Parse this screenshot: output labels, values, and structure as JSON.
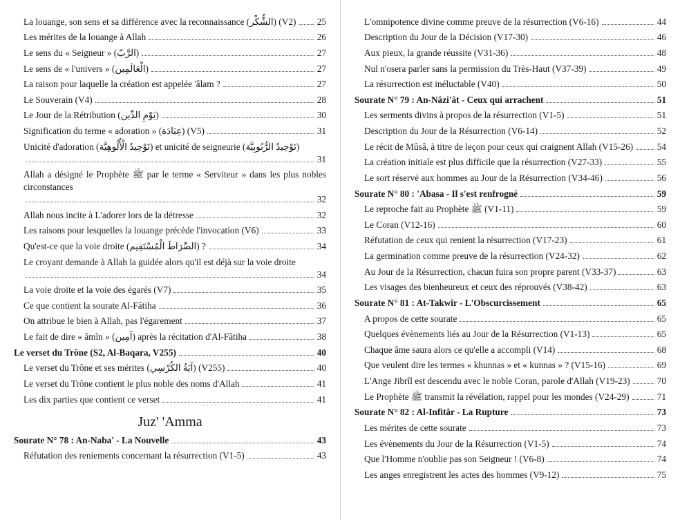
{
  "section_title": "Juz' 'Amma",
  "left": [
    {
      "t": "La louange, son sens et sa différence avec la reconnaissance (الشُّكْر) (V2)",
      "p": "25",
      "b": false,
      "i": 1
    },
    {
      "t": "Les mérites de la louange à Allah",
      "p": "26",
      "b": false,
      "i": 1
    },
    {
      "t": "Le sens du « Seigneur » (الرَّبّ)",
      "p": "27",
      "b": false,
      "i": 1
    },
    {
      "t": "Le sens de « l'univers » (الْعَالَمِين)",
      "p": "27",
      "b": false,
      "i": 1
    },
    {
      "t": "La raison pour laquelle la création est appelée 'âlam ?",
      "p": "27",
      "b": false,
      "i": 1
    },
    {
      "t": "Le Souverain (V4)",
      "p": "28",
      "b": false,
      "i": 1
    },
    {
      "t": "Le Jour de la Rétribution (يَوْمِ الدِّين)",
      "p": "30",
      "b": false,
      "i": 1
    },
    {
      "t": "Signification du terme « adoration » (عِبَادَة) (V5)",
      "p": "31",
      "b": false,
      "i": 1
    },
    {
      "t": "Unicité d'adoration (تَوْحِيدُ الْأُلُوهِيَّة) et unicité de seigneurie (تَوْحِيدُ الرُّبُوبِيَّة)",
      "p": "31",
      "b": false,
      "i": 1,
      "wrap": true
    },
    {
      "t": "Allah a désigné le Prophète ﷺ par le terme « Serviteur » dans les plus nobles circonstances",
      "p": "32",
      "b": false,
      "i": 1,
      "wrap": true
    },
    {
      "t": "Allah nous incite à L'adorer lors de la détresse",
      "p": "32",
      "b": false,
      "i": 1
    },
    {
      "t": "Les raisons pour lesquelles la louange précède l'invocation (V6)",
      "p": "33",
      "b": false,
      "i": 1
    },
    {
      "t": "Qu'est-ce que la voie droite (الصِّرَاطَ الْمُسْتَقِيم) ?",
      "p": "34",
      "b": false,
      "i": 1
    },
    {
      "t": "Le croyant demande à Allah la guidée alors qu'il est déjà sur la voie droite",
      "p": "34",
      "b": false,
      "i": 1,
      "wrap": true
    },
    {
      "t": "La voie droite et la voie des égarés (V7)",
      "p": "35",
      "b": false,
      "i": 1
    },
    {
      "t": "Ce que contient la sourate Al-Fâtiha",
      "p": "36",
      "b": false,
      "i": 1
    },
    {
      "t": "On attribue le bien à Allah, pas l'égarement",
      "p": "37",
      "b": false,
      "i": 1
    },
    {
      "t": "Le fait de dire « âmîn » (آمِين) après la récitation d'Al-Fâtiha",
      "p": "38",
      "b": false,
      "i": 1
    },
    {
      "t": "Le verset du Trône (S2, Al-Baqara, V255)",
      "p": "40",
      "b": true,
      "i": 0
    },
    {
      "t": "Le verset du Trône et ses mérites (آيَةُ الكُرْسِي) (V255)",
      "p": "40",
      "b": false,
      "i": 1
    },
    {
      "t": "Le verset du Trône contient le plus noble des noms d'Allah",
      "p": "41",
      "b": false,
      "i": 1
    },
    {
      "t": "Les dix parties que contient ce verset",
      "p": "41",
      "b": false,
      "i": 1
    }
  ],
  "left_after_title": [
    {
      "t": "Sourate N° 78 : An-Naba' - La Nouvelle",
      "p": "43",
      "b": true,
      "i": 0
    },
    {
      "t": "Réfutation des reniements concernant la résurrection (V1-5)",
      "p": "43",
      "b": false,
      "i": 1
    }
  ],
  "right": [
    {
      "t": "L'omnipotence divine comme preuve de la résurrection (V6-16)",
      "p": "44",
      "b": false,
      "i": 1
    },
    {
      "t": "Description du Jour de la Décision (V17-30)",
      "p": "46",
      "b": false,
      "i": 1
    },
    {
      "t": "Aux pieux, la grande réussite (V31-36)",
      "p": "48",
      "b": false,
      "i": 1
    },
    {
      "t": "Nul n'osera parler sans la permission du Très-Haut (V37-39)",
      "p": "49",
      "b": false,
      "i": 1
    },
    {
      "t": "La résurrection est inéluctable (V40)",
      "p": "50",
      "b": false,
      "i": 1
    },
    {
      "t": "Sourate N° 79 : An-Nâzi'ât - Ceux qui arrachent",
      "p": "51",
      "b": true,
      "i": 0
    },
    {
      "t": "Les serments divins à propos de la résurrection (V1-5)",
      "p": "51",
      "b": false,
      "i": 1
    },
    {
      "t": "Description du Jour de la Résurrection (V6-14)",
      "p": "52",
      "b": false,
      "i": 1
    },
    {
      "t": "Le récit de Mûsâ, à titre de leçon pour ceux qui craignent Allah (V15-26)",
      "p": "54",
      "b": false,
      "i": 1
    },
    {
      "t": "La création initiale est plus difficile que la résurrection (V27-33)",
      "p": "55",
      "b": false,
      "i": 1
    },
    {
      "t": "Le sort réservé aux hommes au Jour de la Résurrection (V34-46)",
      "p": "56",
      "b": false,
      "i": 1
    },
    {
      "t": "Sourate N° 80 : 'Abasa - Il s'est renfrogné",
      "p": "59",
      "b": true,
      "i": 0
    },
    {
      "t": "Le reproche fait au Prophète ﷺ (V1-11)",
      "p": "59",
      "b": false,
      "i": 1
    },
    {
      "t": "Le Coran (V12-16)",
      "p": "60",
      "b": false,
      "i": 1
    },
    {
      "t": "Réfutation de ceux qui renient la résurrection (V17-23)",
      "p": "61",
      "b": false,
      "i": 1
    },
    {
      "t": "La germination comme preuve de la résurrection (V24-32)",
      "p": "62",
      "b": false,
      "i": 1
    },
    {
      "t": "Au Jour de la Résurrection, chacun fuira son propre parent (V33-37)",
      "p": "63",
      "b": false,
      "i": 1
    },
    {
      "t": "Les visages des bienheureux et ceux des réprouvés (V38-42)",
      "p": "63",
      "b": false,
      "i": 1
    },
    {
      "t": "Sourate N° 81 : At-Takwîr - L'Obscurcissement",
      "p": "65",
      "b": true,
      "i": 0
    },
    {
      "t": "A propos de cette sourate",
      "p": "65",
      "b": false,
      "i": 1
    },
    {
      "t": "Quelques évènements liés au Jour de la Résurrection (V1-13)",
      "p": "65",
      "b": false,
      "i": 1
    },
    {
      "t": "Chaque âme saura alors ce qu'elle a accompli (V14)",
      "p": "68",
      "b": false,
      "i": 1
    },
    {
      "t": "Que veulent dire les termes « khunnas » et « kunnas » ?   (V15-16)",
      "p": "69",
      "b": false,
      "i": 1
    },
    {
      "t": "L'Ange Jibrîl est descendu avec le noble Coran, parole d'Allah (V19-23)",
      "p": "70",
      "b": false,
      "i": 1
    },
    {
      "t": "Le Prophète ﷺ transmit la révélation, rappel pour les mondes (V24-29)",
      "p": "71",
      "b": false,
      "i": 1
    },
    {
      "t": "Sourate N° 82 : Al-Infitâr - La Rupture",
      "p": "73",
      "b": true,
      "i": 0
    },
    {
      "t": "Les mérites de cette sourate",
      "p": "73",
      "b": false,
      "i": 1
    },
    {
      "t": "Les évènements du Jour de la Résurrection (V1-5)",
      "p": "74",
      "b": false,
      "i": 1
    },
    {
      "t": "Que l'Homme n'oublie pas son Seigneur ! (V6-8)",
      "p": "74",
      "b": false,
      "i": 1
    },
    {
      "t": "Les anges enregistrent les actes des hommes (V9-12)",
      "p": "75",
      "b": false,
      "i": 1
    }
  ]
}
